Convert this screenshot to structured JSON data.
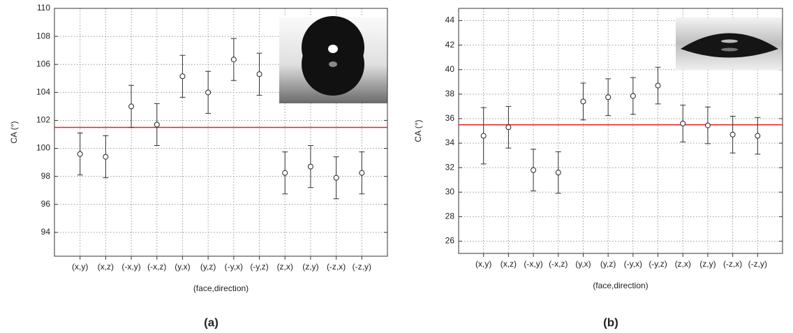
{
  "chart_data": [
    {
      "type": "scatter",
      "caption": "(a)",
      "x_label": "(face,direction)",
      "y_label": "CA (°)",
      "categories": [
        "(x,y)",
        "(x,z)",
        "(-x,y)",
        "(-x,z)",
        "(y,x)",
        "(y,z)",
        "(-y,x)",
        "(-y,z)",
        "(z,x)",
        "(z,y)",
        "(-z,x)",
        "(-z,y)"
      ],
      "values": [
        99.6,
        99.4,
        103.0,
        101.7,
        105.15,
        104.0,
        106.35,
        105.3,
        98.25,
        98.7,
        97.9,
        98.25
      ],
      "errors": [
        1.5,
        1.5,
        1.5,
        1.5,
        1.5,
        1.5,
        1.5,
        1.5,
        1.5,
        1.5,
        1.5,
        1.5
      ],
      "reference_line": 101.5,
      "reference_color": "#e8211a",
      "color": "#ffffff",
      "ylim": [
        92.3,
        110
      ],
      "yticks": [
        94,
        96,
        98,
        100,
        102,
        104,
        106,
        108,
        110
      ],
      "grid": true
    },
    {
      "type": "scatter",
      "caption": "(b)",
      "x_label": "(face,direction)",
      "y_label": "CA (°)",
      "categories": [
        "(x,y)",
        "(x,z)",
        "(-x,y)",
        "(-x,z)",
        "(y,x)",
        "(y,z)",
        "(-y,x)",
        "(-y,z)",
        "(z,x)",
        "(z,y)",
        "(-z,x)",
        "(-z,y)"
      ],
      "values": [
        34.6,
        35.3,
        31.8,
        31.6,
        37.4,
        37.75,
        37.85,
        38.7,
        35.6,
        35.45,
        34.7,
        34.6
      ],
      "errors": [
        2.3,
        1.7,
        1.7,
        1.7,
        1.5,
        1.5,
        1.5,
        1.5,
        1.5,
        1.5,
        1.5,
        1.5
      ],
      "reference_line": 35.5,
      "reference_color": "#e8211a",
      "color": "#ffffff",
      "ylim": [
        25,
        45
      ],
      "yticks": [
        26,
        28,
        30,
        32,
        34,
        36,
        38,
        40,
        42,
        44
      ],
      "grid": true
    }
  ]
}
